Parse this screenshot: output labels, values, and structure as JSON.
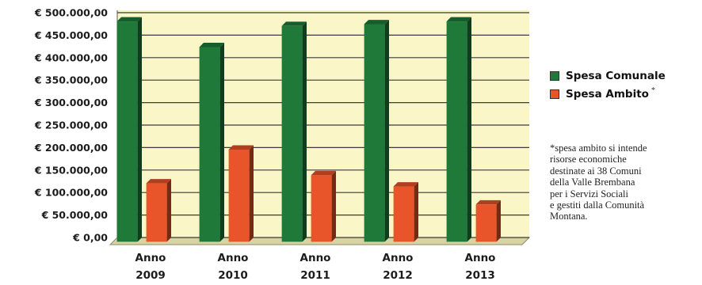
{
  "chart_data": {
    "type": "bar",
    "categories": [
      "Anno\n2009",
      "Anno\n2010",
      "Anno\n2011",
      "Anno\n2012",
      "Anno\n2013"
    ],
    "series": [
      {
        "name": "Spesa Comunale",
        "values": [
          490000,
          433000,
          480000,
          484000,
          490000
        ],
        "color": "#1f7a3a"
      },
      {
        "name": "Spesa Ambito",
        "values": [
          130000,
          205000,
          148000,
          123000,
          83000
        ],
        "color": "#e8552a"
      }
    ],
    "ylim": [
      0,
      500000
    ],
    "yticks": [
      "€ 0,00",
      "€ 50.000,00",
      "€ 100.000,00",
      "€ 150.000,00",
      "€ 200.000,00",
      "€ 250.000,00",
      "€ 300.000,00",
      "€ 350.000,00",
      "€ 400.000,00",
      "€ 450.000,00",
      "€ 500.000,00"
    ],
    "grid": true,
    "legend_position": "right",
    "background_color": "#fbf6c8"
  },
  "legend": {
    "items": [
      {
        "label": "Spesa Comunale",
        "mark": "",
        "color": "#1f7a3a"
      },
      {
        "label": "Spesa Ambito",
        "mark": "*",
        "color": "#e8552a"
      }
    ]
  },
  "note": {
    "lines": [
      "*spesa ambito si intende",
      "risorse economiche",
      "destinate ai 38 Comuni",
      "della Valle Brembana",
      "per i Servizi Sociali",
      "e gestiti dalla Comunità",
      "Montana."
    ]
  }
}
